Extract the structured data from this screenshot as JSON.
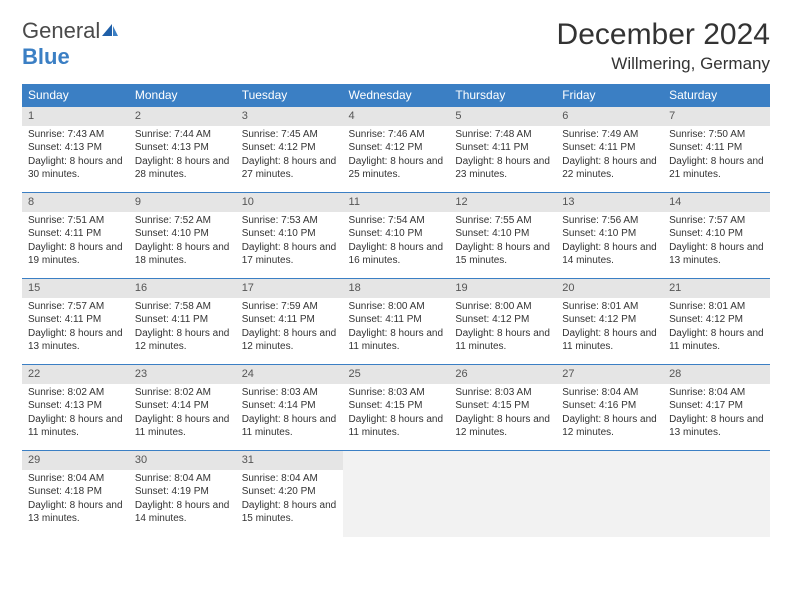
{
  "logo": {
    "word1": "General",
    "word2": "Blue"
  },
  "title": "December 2024",
  "location": "Willmering, Germany",
  "colors": {
    "header_bg": "#3b7fc4",
    "daynum_bg": "#e5e5e5",
    "empty_bg": "#f2f2f2",
    "border": "#3b7fc4"
  },
  "weekdays": [
    "Sunday",
    "Monday",
    "Tuesday",
    "Wednesday",
    "Thursday",
    "Friday",
    "Saturday"
  ],
  "weeks": [
    [
      {
        "n": "1",
        "sr": "Sunrise: 7:43 AM",
        "ss": "Sunset: 4:13 PM",
        "dl": "Daylight: 8 hours and 30 minutes."
      },
      {
        "n": "2",
        "sr": "Sunrise: 7:44 AM",
        "ss": "Sunset: 4:13 PM",
        "dl": "Daylight: 8 hours and 28 minutes."
      },
      {
        "n": "3",
        "sr": "Sunrise: 7:45 AM",
        "ss": "Sunset: 4:12 PM",
        "dl": "Daylight: 8 hours and 27 minutes."
      },
      {
        "n": "4",
        "sr": "Sunrise: 7:46 AM",
        "ss": "Sunset: 4:12 PM",
        "dl": "Daylight: 8 hours and 25 minutes."
      },
      {
        "n": "5",
        "sr": "Sunrise: 7:48 AM",
        "ss": "Sunset: 4:11 PM",
        "dl": "Daylight: 8 hours and 23 minutes."
      },
      {
        "n": "6",
        "sr": "Sunrise: 7:49 AM",
        "ss": "Sunset: 4:11 PM",
        "dl": "Daylight: 8 hours and 22 minutes."
      },
      {
        "n": "7",
        "sr": "Sunrise: 7:50 AM",
        "ss": "Sunset: 4:11 PM",
        "dl": "Daylight: 8 hours and 21 minutes."
      }
    ],
    [
      {
        "n": "8",
        "sr": "Sunrise: 7:51 AM",
        "ss": "Sunset: 4:11 PM",
        "dl": "Daylight: 8 hours and 19 minutes."
      },
      {
        "n": "9",
        "sr": "Sunrise: 7:52 AM",
        "ss": "Sunset: 4:10 PM",
        "dl": "Daylight: 8 hours and 18 minutes."
      },
      {
        "n": "10",
        "sr": "Sunrise: 7:53 AM",
        "ss": "Sunset: 4:10 PM",
        "dl": "Daylight: 8 hours and 17 minutes."
      },
      {
        "n": "11",
        "sr": "Sunrise: 7:54 AM",
        "ss": "Sunset: 4:10 PM",
        "dl": "Daylight: 8 hours and 16 minutes."
      },
      {
        "n": "12",
        "sr": "Sunrise: 7:55 AM",
        "ss": "Sunset: 4:10 PM",
        "dl": "Daylight: 8 hours and 15 minutes."
      },
      {
        "n": "13",
        "sr": "Sunrise: 7:56 AM",
        "ss": "Sunset: 4:10 PM",
        "dl": "Daylight: 8 hours and 14 minutes."
      },
      {
        "n": "14",
        "sr": "Sunrise: 7:57 AM",
        "ss": "Sunset: 4:10 PM",
        "dl": "Daylight: 8 hours and 13 minutes."
      }
    ],
    [
      {
        "n": "15",
        "sr": "Sunrise: 7:57 AM",
        "ss": "Sunset: 4:11 PM",
        "dl": "Daylight: 8 hours and 13 minutes."
      },
      {
        "n": "16",
        "sr": "Sunrise: 7:58 AM",
        "ss": "Sunset: 4:11 PM",
        "dl": "Daylight: 8 hours and 12 minutes."
      },
      {
        "n": "17",
        "sr": "Sunrise: 7:59 AM",
        "ss": "Sunset: 4:11 PM",
        "dl": "Daylight: 8 hours and 12 minutes."
      },
      {
        "n": "18",
        "sr": "Sunrise: 8:00 AM",
        "ss": "Sunset: 4:11 PM",
        "dl": "Daylight: 8 hours and 11 minutes."
      },
      {
        "n": "19",
        "sr": "Sunrise: 8:00 AM",
        "ss": "Sunset: 4:12 PM",
        "dl": "Daylight: 8 hours and 11 minutes."
      },
      {
        "n": "20",
        "sr": "Sunrise: 8:01 AM",
        "ss": "Sunset: 4:12 PM",
        "dl": "Daylight: 8 hours and 11 minutes."
      },
      {
        "n": "21",
        "sr": "Sunrise: 8:01 AM",
        "ss": "Sunset: 4:12 PM",
        "dl": "Daylight: 8 hours and 11 minutes."
      }
    ],
    [
      {
        "n": "22",
        "sr": "Sunrise: 8:02 AM",
        "ss": "Sunset: 4:13 PM",
        "dl": "Daylight: 8 hours and 11 minutes."
      },
      {
        "n": "23",
        "sr": "Sunrise: 8:02 AM",
        "ss": "Sunset: 4:14 PM",
        "dl": "Daylight: 8 hours and 11 minutes."
      },
      {
        "n": "24",
        "sr": "Sunrise: 8:03 AM",
        "ss": "Sunset: 4:14 PM",
        "dl": "Daylight: 8 hours and 11 minutes."
      },
      {
        "n": "25",
        "sr": "Sunrise: 8:03 AM",
        "ss": "Sunset: 4:15 PM",
        "dl": "Daylight: 8 hours and 11 minutes."
      },
      {
        "n": "26",
        "sr": "Sunrise: 8:03 AM",
        "ss": "Sunset: 4:15 PM",
        "dl": "Daylight: 8 hours and 12 minutes."
      },
      {
        "n": "27",
        "sr": "Sunrise: 8:04 AM",
        "ss": "Sunset: 4:16 PM",
        "dl": "Daylight: 8 hours and 12 minutes."
      },
      {
        "n": "28",
        "sr": "Sunrise: 8:04 AM",
        "ss": "Sunset: 4:17 PM",
        "dl": "Daylight: 8 hours and 13 minutes."
      }
    ],
    [
      {
        "n": "29",
        "sr": "Sunrise: 8:04 AM",
        "ss": "Sunset: 4:18 PM",
        "dl": "Daylight: 8 hours and 13 minutes."
      },
      {
        "n": "30",
        "sr": "Sunrise: 8:04 AM",
        "ss": "Sunset: 4:19 PM",
        "dl": "Daylight: 8 hours and 14 minutes."
      },
      {
        "n": "31",
        "sr": "Sunrise: 8:04 AM",
        "ss": "Sunset: 4:20 PM",
        "dl": "Daylight: 8 hours and 15 minutes."
      },
      {
        "empty": true
      },
      {
        "empty": true
      },
      {
        "empty": true
      },
      {
        "empty": true
      }
    ]
  ]
}
